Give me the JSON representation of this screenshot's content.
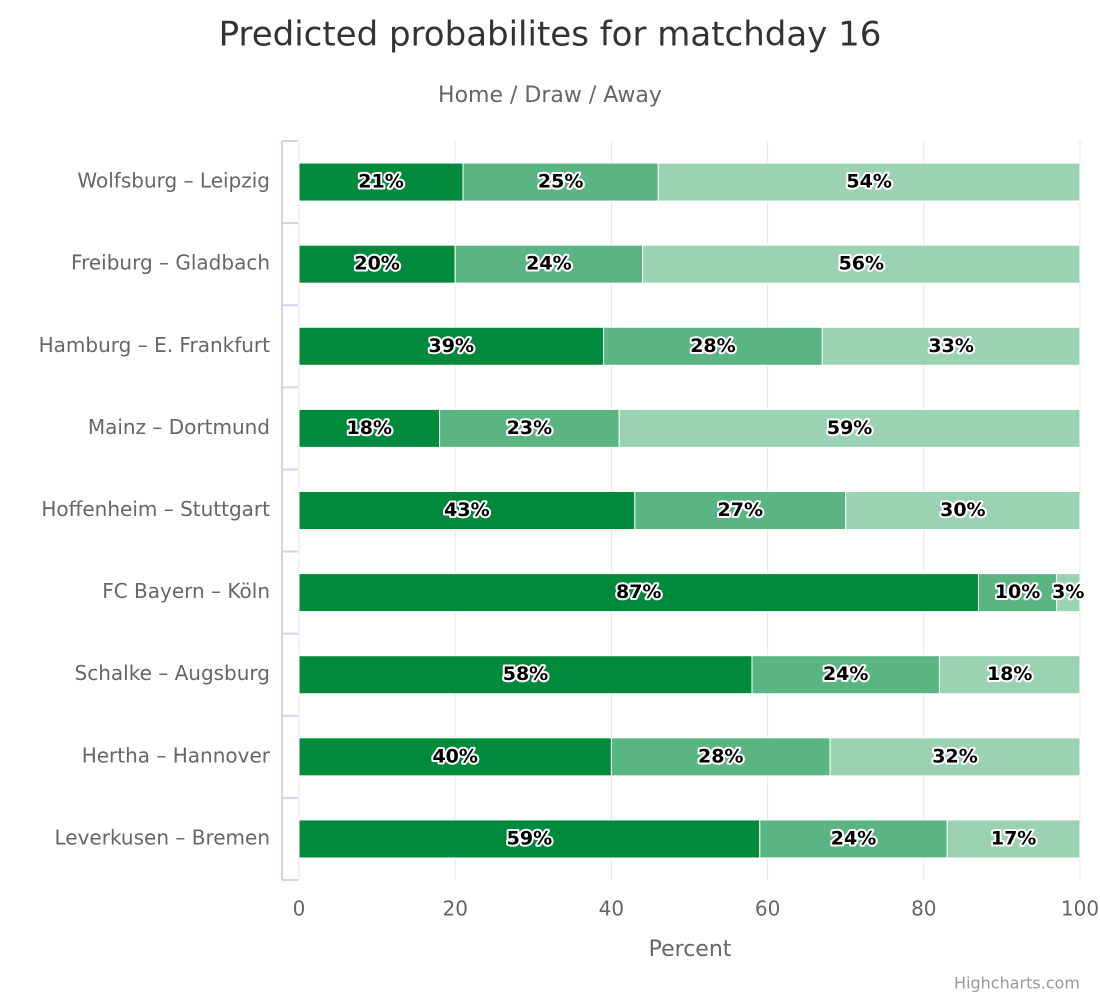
{
  "chart_data": {
    "type": "stacked_bar",
    "orientation": "horizontal",
    "title": "Predicted probabilites for matchday 16",
    "subtitle": "Home / Draw / Away",
    "x_label": "Percent",
    "credits": "Highcharts.com",
    "categories": [
      "Wolfsburg – Leipzig",
      "Freiburg – Gladbach",
      "Hamburg – E. Frankfurt",
      "Mainz – Dortmund",
      "Hoffenheim – Stuttgart",
      "FC Bayern – Köln",
      "Schalke – Augsburg",
      "Hertha – Hannover",
      "Leverkusen – Bremen"
    ],
    "series": [
      {
        "color": "#008a3c",
        "values": [
          21,
          20,
          39,
          18,
          43,
          87,
          58,
          40,
          59
        ],
        "value_labels": [
          "21%",
          "20%",
          "39%",
          "18%",
          "43%",
          "87%",
          "58%",
          "40%",
          "59%"
        ]
      },
      {
        "color": "#5bb583",
        "values": [
          25,
          24,
          28,
          23,
          27,
          10,
          24,
          28,
          24
        ],
        "value_labels": [
          "25%",
          "24%",
          "28%",
          "23%",
          "27%",
          "10%",
          "24%",
          "28%",
          "24%"
        ]
      },
      {
        "color": "#9bd3b2",
        "values": [
          54,
          56,
          33,
          59,
          30,
          3,
          18,
          32,
          17
        ],
        "value_labels": [
          "54%",
          "56%",
          "33%",
          "59%",
          "30%",
          "3%",
          "18%",
          "32%",
          "17%"
        ]
      }
    ],
    "xlim": [
      0,
      100
    ],
    "xticks": [
      0,
      20,
      40,
      60,
      80,
      100
    ],
    "grid": true
  }
}
